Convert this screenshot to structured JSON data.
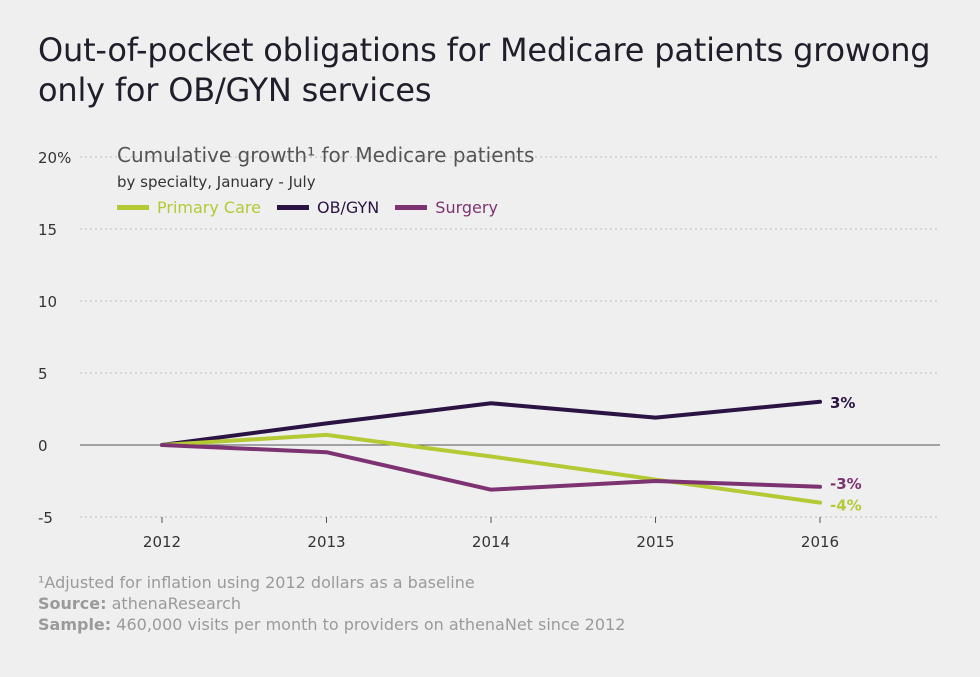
{
  "title": "Out-of-pocket obligations for Medicare patients growong only for OB/GYN services",
  "chart_data": {
    "type": "line",
    "title": "Cumulative growth¹ for Medicare patients",
    "subtitle": "by specialty, January - July",
    "x": [
      "2012",
      "2013",
      "2014",
      "2015",
      "2016"
    ],
    "ylim": [
      -5,
      20
    ],
    "yticks": [
      "20%",
      "15",
      "10",
      "5",
      "0",
      "-5"
    ],
    "grid": true,
    "legend_placement": "top-left",
    "series": [
      {
        "name": "Primary Care",
        "color": "#b5c935",
        "values": [
          0,
          0.7,
          -0.8,
          -2.4,
          -4.0
        ],
        "end_label": "-4%"
      },
      {
        "name": "OB/GYN",
        "color": "#2b1444",
        "values": [
          0,
          1.5,
          2.9,
          1.9,
          3.0
        ],
        "end_label": "3%"
      },
      {
        "name": "Surgery",
        "color": "#7d3371",
        "values": [
          0,
          -0.5,
          -3.1,
          -2.5,
          -2.9
        ],
        "end_label": "-3%"
      }
    ]
  },
  "footer": {
    "note": "¹Adjusted for inflation using 2012 dollars as a baseline",
    "source_label": "Source:",
    "source_value": " athenaResearch",
    "sample_label": "Sample:",
    "sample_value": " 460,000 visits per month to providers on athenaNet since 2012"
  }
}
